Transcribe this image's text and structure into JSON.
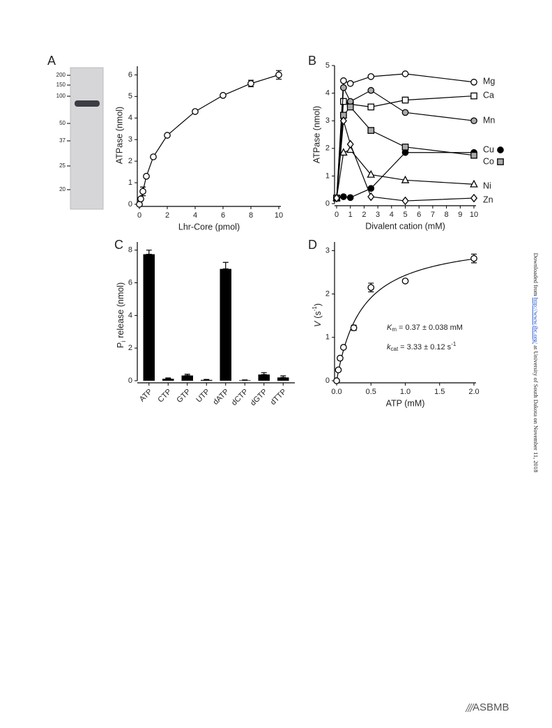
{
  "panels": [
    "A",
    "B",
    "C",
    "D"
  ],
  "gel": {
    "markers": [
      "200",
      "150",
      "100",
      "50",
      "37",
      "25",
      "20"
    ]
  },
  "chart_data": [
    {
      "type": "line",
      "xlabel": "Lhr-Core (pmol)",
      "ylabel": "ATPase (nmol)",
      "x": [
        0,
        0.1,
        0.25,
        0.5,
        1,
        2,
        4,
        6,
        8,
        10
      ],
      "values": [
        0,
        0.25,
        0.6,
        1.3,
        2.2,
        3.2,
        4.3,
        5.05,
        5.6,
        6.0
      ],
      "errors": [
        0,
        0,
        0.2,
        0,
        0,
        0,
        0,
        0,
        0.15,
        0.2
      ],
      "marker": "circle",
      "fill": "#ffffff",
      "color": "#000000",
      "xlim": [
        0,
        10
      ],
      "xticks": [
        0,
        2,
        4,
        6,
        8,
        10
      ],
      "ylim": [
        0,
        6.4
      ],
      "yticks": [
        0,
        1,
        2,
        3,
        4,
        5,
        6
      ]
    },
    {
      "type": "line",
      "xlabel": "Divalent cation (mM)",
      "ylabel": "ATPase (nmol)",
      "x": [
        0,
        0.5,
        1,
        2.5,
        5,
        10
      ],
      "series": [
        {
          "name": "Mg",
          "marker": "circle",
          "fill": "#ffffff",
          "color": "#000000",
          "values": [
            0.2,
            4.45,
            4.35,
            4.6,
            4.7,
            4.4
          ]
        },
        {
          "name": "Ca",
          "marker": "square",
          "fill": "#ffffff",
          "color": "#000000",
          "values": [
            0.2,
            3.7,
            3.6,
            3.5,
            3.75,
            3.9
          ]
        },
        {
          "name": "Mn",
          "marker": "circle",
          "fill": "#aaaaaa",
          "color": "#000000",
          "values": [
            0.2,
            4.2,
            3.7,
            4.1,
            3.3,
            3.0
          ]
        },
        {
          "name": "Cu",
          "marker": "circle",
          "fill": "#000000",
          "color": "#000000",
          "values": [
            0.2,
            0.25,
            0.22,
            0.55,
            1.85,
            1.85
          ]
        },
        {
          "name": "Co",
          "marker": "square",
          "fill": "#aaaaaa",
          "color": "#000000",
          "values": [
            0.2,
            3.2,
            3.5,
            2.65,
            2.05,
            1.75
          ]
        },
        {
          "name": "Ni",
          "marker": "triangle",
          "fill": "#ffffff",
          "color": "#000000",
          "values": [
            0.2,
            1.85,
            1.95,
            1.05,
            0.85,
            0.7
          ]
        },
        {
          "name": "Zn",
          "marker": "diamond",
          "fill": "#ffffff",
          "color": "#000000",
          "values": [
            0.2,
            3.0,
            2.15,
            0.25,
            0.1,
            0.2
          ]
        }
      ],
      "legend_swatch": [
        false,
        false,
        false,
        true,
        true,
        false,
        false
      ],
      "xlim": [
        0,
        10
      ],
      "xticks": [
        0,
        1,
        2,
        3,
        4,
        5,
        6,
        7,
        8,
        9,
        10
      ],
      "ylim": [
        0,
        5
      ],
      "yticks": [
        0,
        1,
        2,
        3,
        4,
        5
      ]
    },
    {
      "type": "bar",
      "ylabel": [
        "P",
        "i",
        "release (nmol)"
      ],
      "categories": [
        "ATP",
        "CTP",
        "GTP",
        "UTP",
        "dATP",
        "dCTP",
        "dGTP",
        "dTTP"
      ],
      "values": [
        7.75,
        0.12,
        0.32,
        0.05,
        6.85,
        0.03,
        0.38,
        0.2
      ],
      "errors": [
        0.25,
        0.05,
        0.08,
        0.03,
        0.4,
        0.02,
        0.12,
        0.1
      ],
      "color": "#000000",
      "ylim": [
        0,
        8.5
      ],
      "yticks": [
        0,
        2,
        4,
        6,
        8
      ]
    },
    {
      "type": "scatter",
      "xlabel": "ATP (mM)",
      "ylabel": [
        "V",
        "(s",
        "-1",
        ")"
      ],
      "x": [
        0,
        0.025,
        0.05,
        0.1,
        0.25,
        0.5,
        1,
        2
      ],
      "values": [
        0,
        0.25,
        0.52,
        0.77,
        1.22,
        2.15,
        2.3,
        2.82
      ],
      "errors": [
        0,
        0,
        0,
        0,
        0.06,
        0.1,
        0,
        0.1
      ],
      "marker": "circle",
      "fill": "#ffffff",
      "color": "#000000",
      "fit": {
        "km": 0.37,
        "kcat": 3.33
      },
      "annotations": [
        [
          "K",
          "m",
          "= 0.37 ± 0.038 mM"
        ],
        [
          "k",
          "cat",
          "= 3.33 ± 0.12 s",
          "-1"
        ]
      ],
      "xlim": [
        0,
        2
      ],
      "xticks": [
        {
          "value": 0,
          "label": "0.0"
        },
        {
          "value": 0.5,
          "label": "0.5"
        },
        {
          "value": 1,
          "label": "1.0"
        },
        {
          "value": 1.5,
          "label": "1.5"
        },
        {
          "value": 2,
          "label": "2.0"
        }
      ],
      "ylim": [
        0,
        3.2
      ],
      "yticks": [
        0,
        1,
        2,
        3
      ]
    }
  ],
  "sidebar": [
    "Downloaded from ",
    "http://www.jbc.org/",
    " at University of South Dakota on November 11, 2018"
  ],
  "footer": {
    "logo": "ASBMB"
  }
}
